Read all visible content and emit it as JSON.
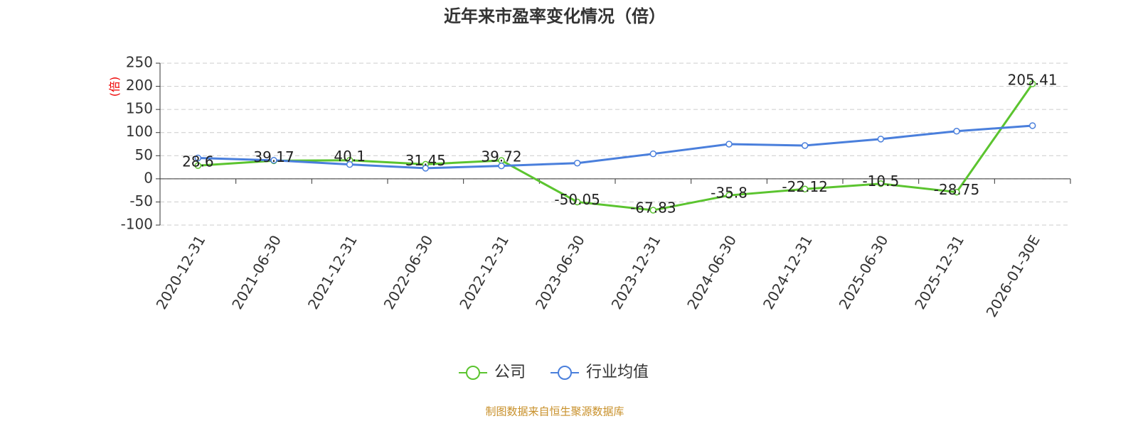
{
  "chart_data": {
    "type": "line",
    "title": "近年来市盈率变化情况（倍）",
    "y_label": "(倍)",
    "categories": [
      "2020-12-31",
      "2021-06-30",
      "2021-12-31",
      "2022-06-30",
      "2022-12-31",
      "2023-06-30",
      "2023-12-31",
      "2024-06-30",
      "2024-12-31",
      "2025-06-30",
      "2025-12-31",
      "2026-01-30E"
    ],
    "series": [
      {
        "name": "公司",
        "color": "#5bc42f",
        "values": [
          28.6,
          39.17,
          40.1,
          31.45,
          39.72,
          -50.05,
          -67.83,
          -35.8,
          -22.12,
          -10.5,
          -28.75,
          205.41
        ],
        "show_labels": true
      },
      {
        "name": "行业均值",
        "color": "#4a7fdc",
        "values": [
          45,
          40,
          31,
          23,
          28,
          34,
          54,
          75,
          72,
          86,
          103,
          115
        ],
        "show_labels": false
      }
    ],
    "ylim": [
      -100,
      250
    ],
    "yticks": [
      -100,
      -50,
      0,
      50,
      100,
      150,
      200,
      250
    ],
    "grid": true,
    "source": "制图数据来自恒生聚源数据库"
  }
}
